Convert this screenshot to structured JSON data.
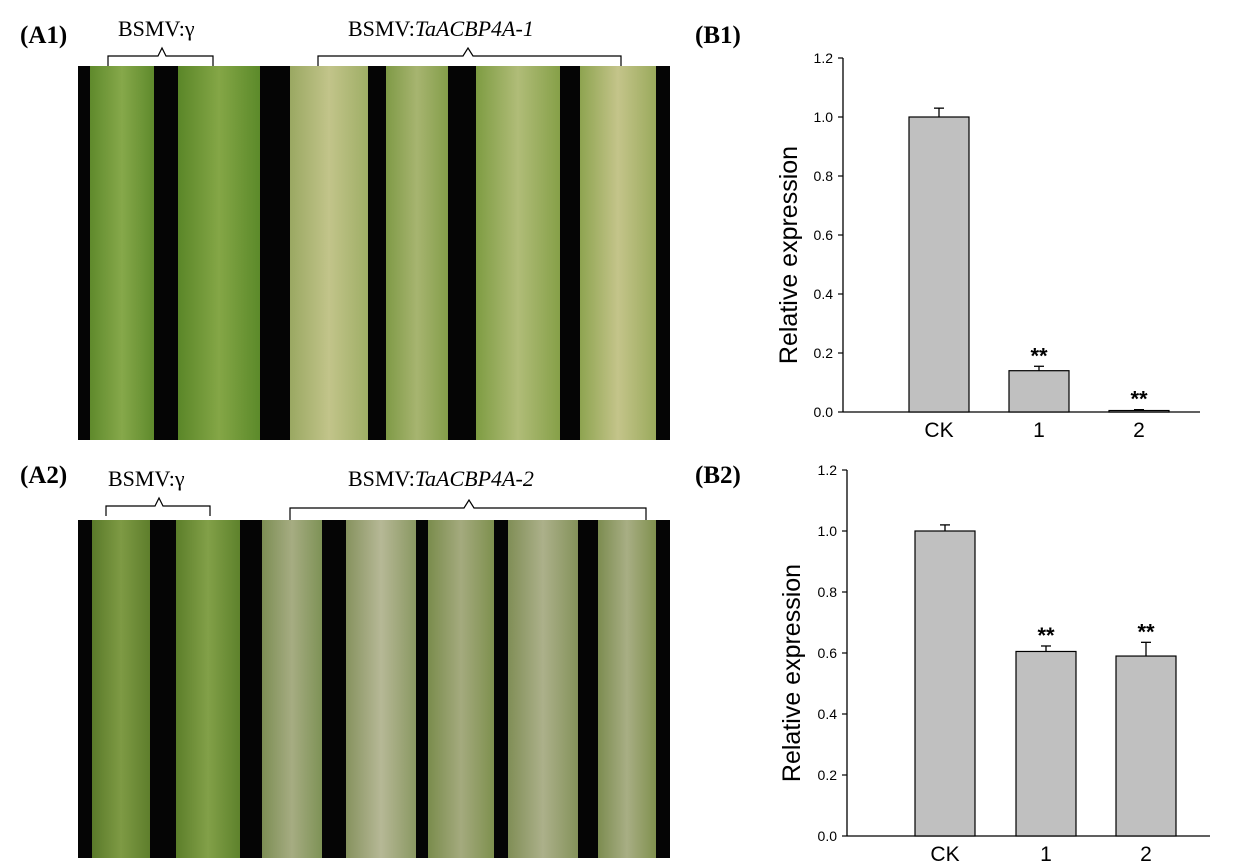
{
  "panels": {
    "a1": {
      "label": "(A1)",
      "control_label": "BSMV:γ",
      "treatment_prefix": "BSMV:",
      "treatment_gene": "TaACBP4A-1",
      "leaf_count": 6
    },
    "a2": {
      "label": "(A2)",
      "control_label": "BSMV:γ",
      "treatment_prefix": "BSMV:",
      "treatment_gene": "TaACBP4A-2",
      "leaf_count": 7
    },
    "b1": {
      "label": "(B1)"
    },
    "b2": {
      "label": "(B2)"
    }
  },
  "chart_data": [
    {
      "type": "bar",
      "panel": "B1",
      "categories": [
        "CK",
        "1",
        "2"
      ],
      "values": [
        1.0,
        0.14,
        0.005
      ],
      "errors": [
        0.03,
        0.015,
        0.003
      ],
      "significance": [
        "",
        "**",
        "**"
      ],
      "ylabel": "Relative expression",
      "ylim": [
        0,
        1.2
      ],
      "yticks": [
        "0.0",
        "0.2",
        "0.4",
        "0.6",
        "0.8",
        "1.0",
        "1.2"
      ],
      "bar_color": "#c0c0c0"
    },
    {
      "type": "bar",
      "panel": "B2",
      "categories": [
        "CK",
        "1",
        "2"
      ],
      "values": [
        1.0,
        0.605,
        0.59
      ],
      "errors": [
        0.02,
        0.018,
        0.045
      ],
      "significance": [
        "",
        "**",
        "**"
      ],
      "ylabel": "Relative expression",
      "ylim": [
        0,
        1.2
      ],
      "yticks": [
        "0.0",
        "0.2",
        "0.4",
        "0.6",
        "0.8",
        "1.0",
        "1.2"
      ],
      "bar_color": "#c0c0c0"
    }
  ]
}
